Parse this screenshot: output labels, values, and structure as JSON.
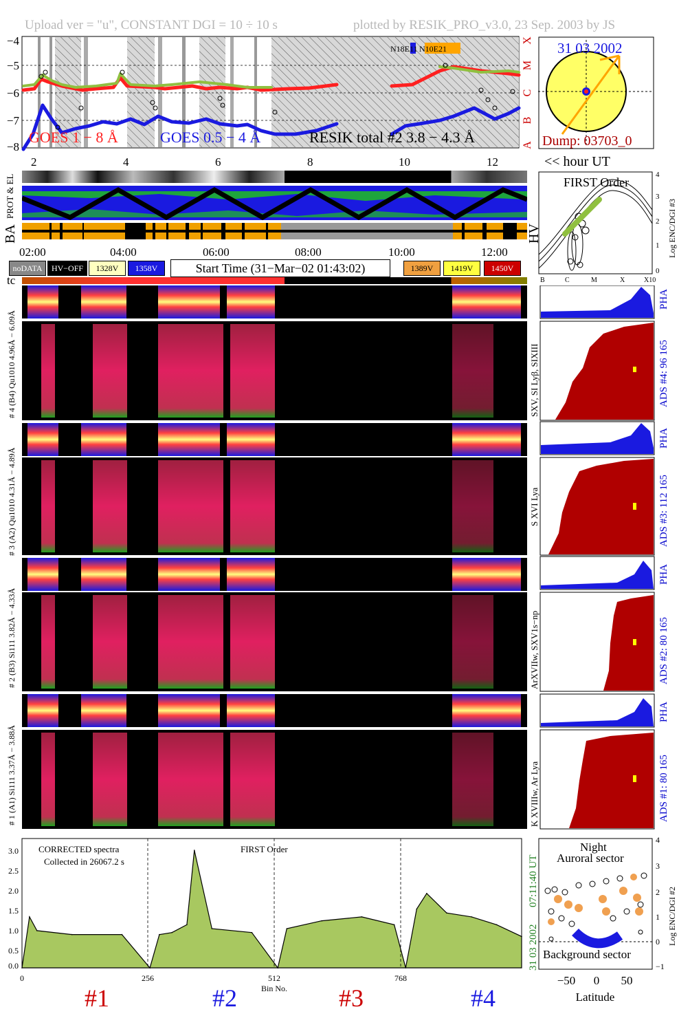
{
  "header": {
    "left": "Upload ver = \"u\", CONSTANT  DGI =  10 ÷  10 s",
    "right": "plotted by RESIK_PRO_v3.0, 23 Sep. 2003 by JS"
  },
  "goes": {
    "y_ticks": [
      "−4",
      "−5",
      "−6",
      "−7",
      "−8"
    ],
    "class_labels": [
      "X",
      "M",
      "C",
      "B",
      "A"
    ],
    "legend_long": "GOES 1 − 8 Å",
    "legend_short": "GOES 0.5 − 4 Å",
    "legend_resik": "RESIK total #2  3.8 − 4.3 Å",
    "region_label": "N18E11",
    "region_label2": "N10E21",
    "colors": {
      "long": "#ff2020",
      "short": "#1a1ae0",
      "resik": "#90c040",
      "region": "#ffa500"
    }
  },
  "sun": {
    "date": "31 03 2002",
    "dump": "Dump: 03703_0"
  },
  "hours": {
    "ticks": [
      "2",
      "4",
      "6",
      "8",
      "10",
      "12"
    ],
    "unit": "<< hour UT"
  },
  "strip_labels": {
    "prot": "PROT & EL",
    "ba": "BA",
    "hv": "HV"
  },
  "time_ticks": [
    "02:00",
    "04:00",
    "06:00",
    "08:00",
    "10:00",
    "12:00"
  ],
  "legend": {
    "nodata": "noDATA",
    "hvoff": "HV−OFF",
    "v1328": "1328V",
    "v1358": "1358V",
    "start_time": "Start Time (31−Mar−02 01:43:02)",
    "v1389": "1389V",
    "v1419": "1419V",
    "v1450": "1450V"
  },
  "first_order": {
    "title": "FIRST Order",
    "ylabel": "Log ENC/DGI #3",
    "y_ticks": [
      "4",
      "3",
      "2",
      "1",
      "0"
    ],
    "x_ticks": [
      "B",
      "C",
      "M",
      "X",
      "X10"
    ]
  },
  "tc_label": "tc",
  "channels": [
    {
      "pha_label": "# 4 (B4) Qu1010 4.96Å − 6.09Å",
      "spec_label": "SXV, SI Lyβ, SIXIII",
      "ads": "ADS #4:   96 165",
      "pha": "PHA"
    },
    {
      "pha_label": "# 3 (A2) Qu1010 4.31Å − 4.89Å",
      "spec_label": "S XVI Lya",
      "ads": "ADS #3:   112 165",
      "pha": "PHA"
    },
    {
      "pha_label": "# 2 (B3) Si111  3.82Å − 4.33Å",
      "spec_label": "ArXVIIw, SXV1s−np",
      "ads": "ADS #2:   80 165",
      "pha": "PHA"
    },
    {
      "pha_label": "# 1 (A1) Si111  3.37Å − 3.88Å",
      "spec_label": "K XVIIIw, Ar Lya",
      "ads": "ADS #1:   80 165",
      "pha": "PHA"
    }
  ],
  "spectrum": {
    "title": "CORRECTED spectra",
    "collected": "Collected in 26067.2 s",
    "order": "FIRST Order",
    "y_ticks": [
      "3.0",
      "2.5",
      "2.0",
      "1.5",
      "1.0",
      "0.5",
      "0.0"
    ],
    "x_ticks": [
      "0",
      "256",
      "512",
      "768"
    ],
    "xlabel": "Bin No.",
    "timestamp": "07:11:40 UT",
    "date": "31 03 2002",
    "channel_labels": [
      "#1",
      "#2",
      "#3",
      "#4"
    ],
    "channel_colors": [
      "#cc0000",
      "#1a1ae0",
      "#cc0000",
      "#1a1ae0"
    ]
  },
  "latitude": {
    "night": "Night",
    "auroral": "Auroral sector",
    "background": "Background sector",
    "xlabel": "Latitude",
    "x_ticks": [
      "−50",
      "0",
      "50"
    ],
    "ylabel": "Log ENC/DGI #2",
    "y_ticks": [
      "4",
      "3",
      "2",
      "1",
      "0",
      "−1"
    ]
  },
  "chart_data": [
    {
      "type": "line",
      "title": "",
      "ylabel": "",
      "ylim": [
        -8,
        -4
      ],
      "series": [
        {
          "name": "GOES 1 − 8 Å",
          "x": [
            2,
            3,
            4,
            5,
            6,
            7,
            8,
            9,
            10,
            11,
            12,
            12.6
          ],
          "values": [
            -5.9,
            -5.8,
            -5.8,
            -5.9,
            -5.8,
            -5.9,
            -5.8,
            -5.6,
            -5.7,
            -5.3,
            -5.4,
            -5.3
          ]
        },
        {
          "name": "GOES 0.5 − 4 Å",
          "x": [
            2,
            3,
            4,
            5,
            6,
            7,
            8,
            9,
            10,
            11,
            12,
            12.6
          ],
          "values": [
            -7.9,
            -7.5,
            -7.3,
            -7.4,
            -7.4,
            -7.6,
            -7.6,
            -7.0,
            -7.9,
            -6.4,
            -6.7,
            -6.6
          ]
        }
      ]
    },
    {
      "type": "area",
      "title": "CORRECTED spectra",
      "xlabel": "Bin No.",
      "ylim": [
        0,
        3.3
      ],
      "x": [
        0,
        15,
        30,
        100,
        200,
        256,
        275,
        300,
        330,
        345,
        380,
        460,
        512,
        530,
        600,
        680,
        745,
        768,
        790,
        810,
        850,
        900,
        950,
        1000
      ],
      "values": [
        0.0,
        1.3,
        0.95,
        0.85,
        0.85,
        0.0,
        0.85,
        0.9,
        1.1,
        3.0,
        1.0,
        0.9,
        0.0,
        1.0,
        1.2,
        1.3,
        1.1,
        0.0,
        1.5,
        1.9,
        1.4,
        1.3,
        1.1,
        0.8
      ]
    }
  ]
}
